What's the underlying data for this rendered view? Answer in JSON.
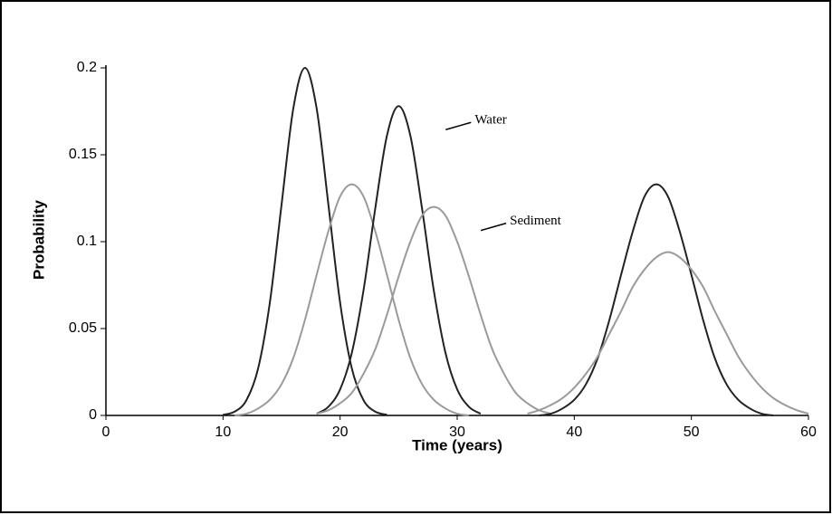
{
  "chart_data": {
    "type": "line",
    "xlabel": "Time (years)",
    "ylabel": "Probability",
    "xlim": [
      0,
      60
    ],
    "xticks": [
      0,
      10,
      20,
      30,
      40,
      50,
      60
    ],
    "ylim": [
      0,
      0.2
    ],
    "yticks": [
      0,
      0.05,
      0.1,
      0.15,
      0.2
    ],
    "series": [
      {
        "color": "#222222",
        "x": [
          10,
          11,
          12,
          13,
          14,
          15,
          16,
          17,
          18,
          19,
          20,
          21,
          22,
          23,
          24
        ],
        "values": [
          0.0004,
          0.0022,
          0.0088,
          0.0271,
          0.0649,
          0.1213,
          0.1765,
          0.2,
          0.1765,
          0.1213,
          0.0649,
          0.0271,
          0.0088,
          0.0022,
          0.0004
        ]
      },
      {
        "color": "#9a9a9a",
        "x": [
          11,
          12,
          13,
          14,
          15,
          16,
          17,
          18,
          19,
          20,
          21,
          22,
          23,
          24,
          25,
          26,
          27,
          28,
          29,
          30,
          31
        ],
        "values": [
          0,
          0.001,
          0.004,
          0.009,
          0.018,
          0.033,
          0.055,
          0.081,
          0.106,
          0.126,
          0.133,
          0.126,
          0.106,
          0.081,
          0.055,
          0.033,
          0.018,
          0.009,
          0.004,
          0.001,
          0
        ]
      },
      {
        "name": "Water",
        "color": "#222222",
        "x": [
          18,
          19,
          20,
          21,
          22,
          23,
          24,
          25,
          26,
          27,
          28,
          29,
          30,
          31,
          32
        ],
        "values": [
          0.001,
          0.005,
          0.015,
          0.036,
          0.072,
          0.119,
          0.161,
          0.178,
          0.161,
          0.119,
          0.072,
          0.036,
          0.015,
          0.005,
          0.001
        ]
      },
      {
        "name": "Sediment",
        "color": "#9a9a9a",
        "x": [
          18,
          19,
          20,
          21,
          22,
          23,
          24,
          25,
          26,
          27,
          28,
          29,
          30,
          31,
          32,
          33,
          34,
          35,
          36,
          37,
          38
        ],
        "values": [
          0.001,
          0.003,
          0.007,
          0.013,
          0.024,
          0.038,
          0.058,
          0.08,
          0.1,
          0.115,
          0.12,
          0.115,
          0.1,
          0.08,
          0.058,
          0.038,
          0.024,
          0.013,
          0.007,
          0.003,
          0.001
        ]
      },
      {
        "color": "#222222",
        "x": [
          37,
          38,
          39,
          40,
          41,
          42,
          43,
          44,
          45,
          46,
          47,
          48,
          49,
          50,
          51,
          52,
          53,
          54,
          55,
          56,
          57
        ],
        "values": [
          0,
          0.001,
          0.004,
          0.009,
          0.018,
          0.033,
          0.055,
          0.081,
          0.106,
          0.126,
          0.133,
          0.126,
          0.106,
          0.081,
          0.055,
          0.033,
          0.018,
          0.009,
          0.004,
          0.001,
          0
        ]
      },
      {
        "color": "#9a9a9a",
        "x": [
          36,
          37,
          38,
          39,
          40,
          41,
          42,
          43,
          44,
          45,
          46,
          47,
          48,
          49,
          50,
          51,
          52,
          53,
          54,
          55,
          56,
          57,
          58,
          59,
          60
        ],
        "values": [
          0.001,
          0.003,
          0.006,
          0.01,
          0.016,
          0.024,
          0.034,
          0.047,
          0.06,
          0.074,
          0.084,
          0.091,
          0.094,
          0.091,
          0.084,
          0.074,
          0.06,
          0.047,
          0.034,
          0.024,
          0.016,
          0.01,
          0.006,
          0.003,
          0.001
        ]
      }
    ]
  }
}
